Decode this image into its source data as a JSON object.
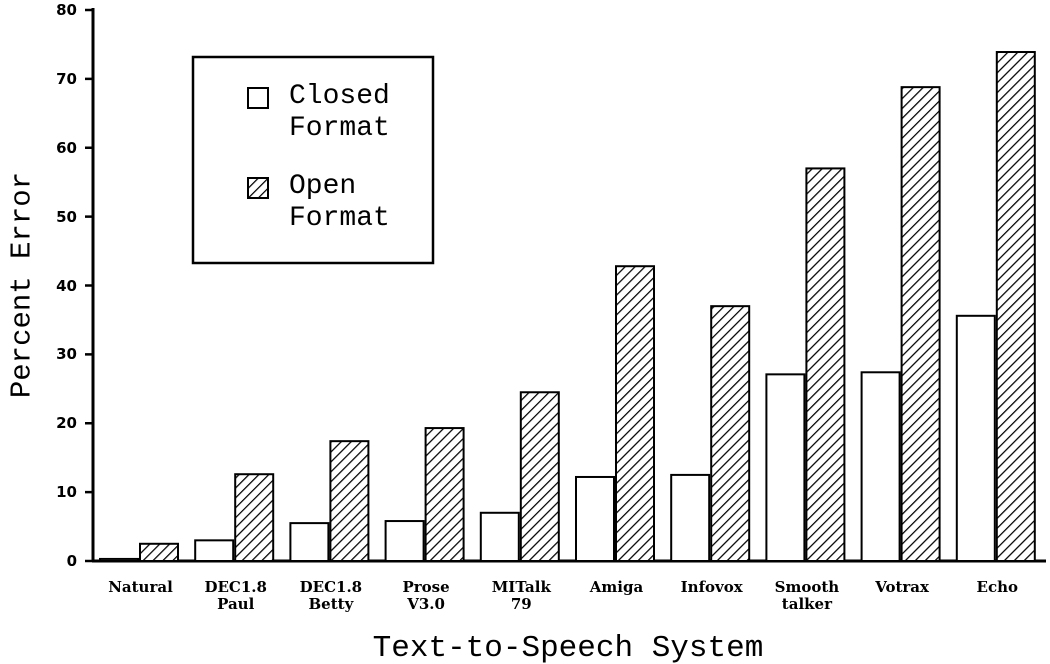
{
  "chart_data": {
    "type": "bar",
    "x_label": "Text-to-Speech System",
    "y_label": "Percent Error",
    "categories": [
      "Natural",
      "DEC1.8\nPaul",
      "DEC1.8\nBetty",
      "Prose\nV3.0",
      "MITalk\n79",
      "Amiga",
      "Infovox",
      "Smooth\ntalker",
      "Votrax",
      "Echo"
    ],
    "series": [
      {
        "name": "Closed\nFormat",
        "color": "#ffffff",
        "pattern": "solid",
        "values": [
          0.3,
          3.0,
          5.5,
          5.8,
          7.0,
          12.2,
          12.5,
          27.1,
          27.4,
          35.6
        ]
      },
      {
        "name": "Open\nFormat",
        "color": "#000000",
        "pattern": "hatch",
        "values": [
          2.5,
          12.6,
          17.4,
          19.3,
          24.5,
          42.8,
          37.0,
          57.0,
          68.8,
          73.9
        ]
      }
    ],
    "ylim": [
      0,
      80
    ],
    "yticks": [
      0,
      10,
      20,
      30,
      40,
      50,
      60,
      70,
      80
    ],
    "grid": false
  }
}
